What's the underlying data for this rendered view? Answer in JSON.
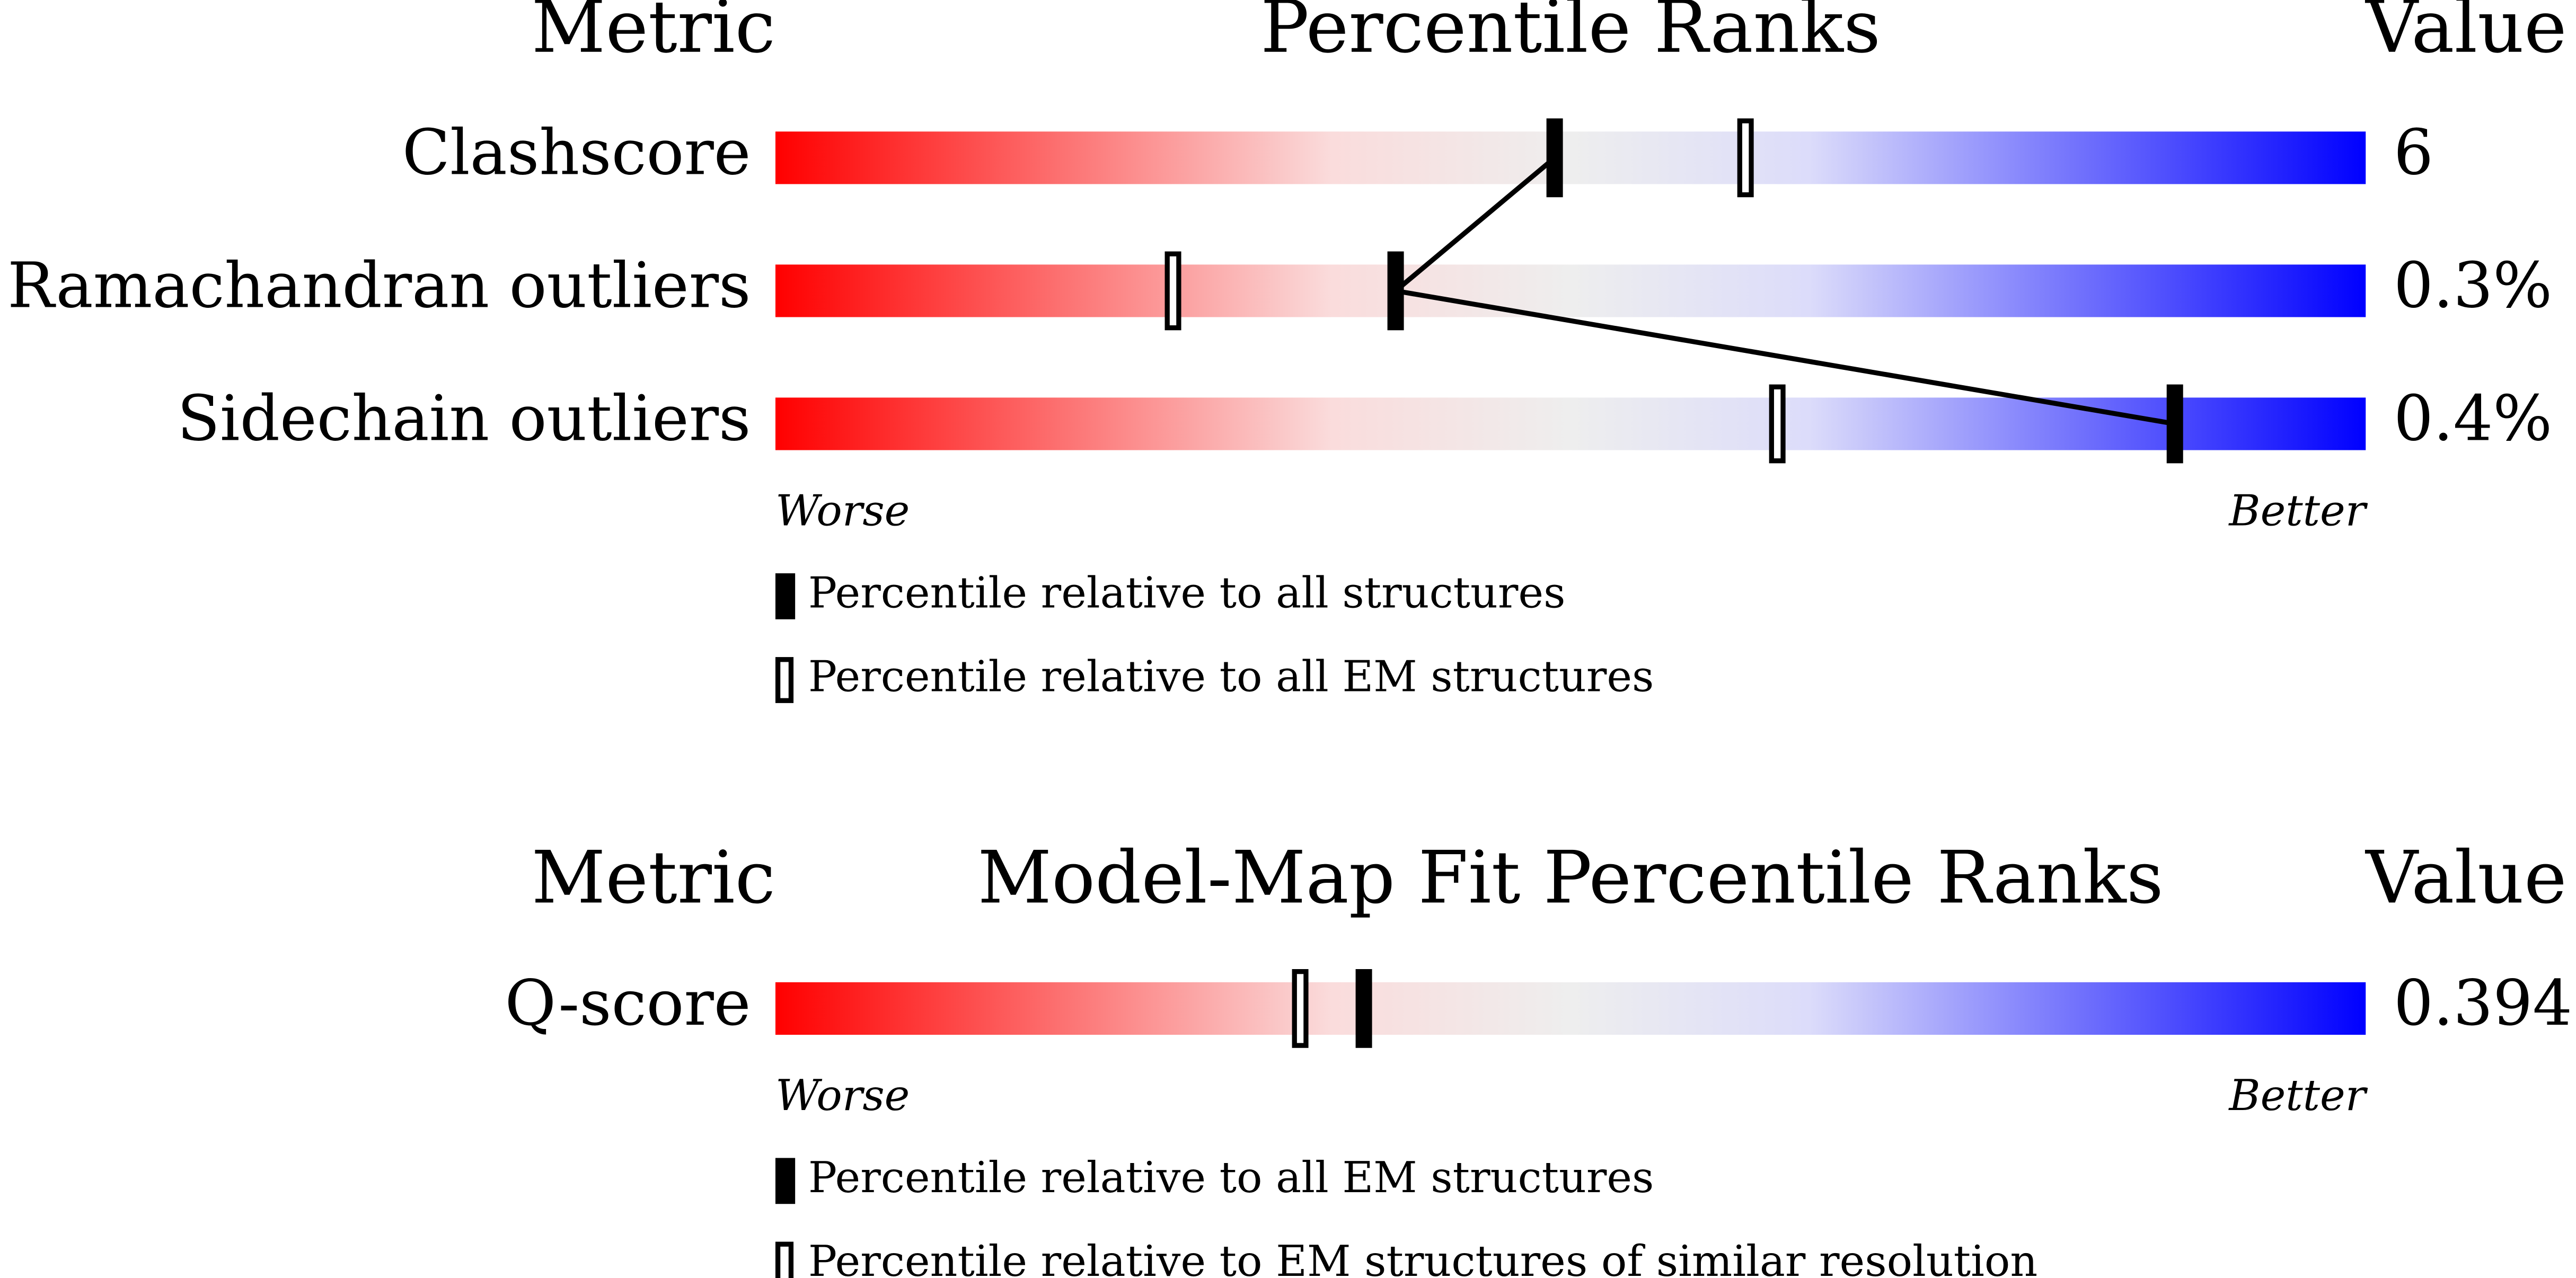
{
  "chart_data": [
    {
      "type": "percentile-slider",
      "metric_header": "Metric",
      "title": "Percentile Ranks",
      "value_header": "Value",
      "categories": [
        "Clashscore",
        "Ramachandran outliers",
        "Sidechain outliers"
      ],
      "metric_values": [
        "6",
        "0.3%",
        "0.4%"
      ],
      "series": [
        {
          "name": "Percentile relative to all structures",
          "color": "#000000",
          "style": "filled",
          "connected": true,
          "values": [
            49,
            39,
            88
          ]
        },
        {
          "name": "Percentile relative to all EM structures",
          "color": "#000000",
          "style": "open",
          "connected": false,
          "values": [
            61,
            25,
            63
          ]
        }
      ],
      "xlim": [
        0,
        100
      ],
      "worse_label": "Worse",
      "better_label": "Better"
    },
    {
      "type": "percentile-slider",
      "metric_header": "Metric",
      "title": "Model-Map Fit Percentile Ranks",
      "value_header": "Value",
      "categories": [
        "Q-score"
      ],
      "metric_values": [
        "0.394"
      ],
      "series": [
        {
          "name": "Percentile relative to all EM structures",
          "color": "#000000",
          "style": "filled",
          "connected": true,
          "values": [
            37
          ]
        },
        {
          "name": "Percentile relative to EM structures of similar resolution",
          "color": "#000000",
          "style": "open",
          "connected": false,
          "values": [
            33
          ]
        }
      ],
      "xlim": [
        0,
        100
      ],
      "worse_label": "Worse",
      "better_label": "Better"
    }
  ]
}
